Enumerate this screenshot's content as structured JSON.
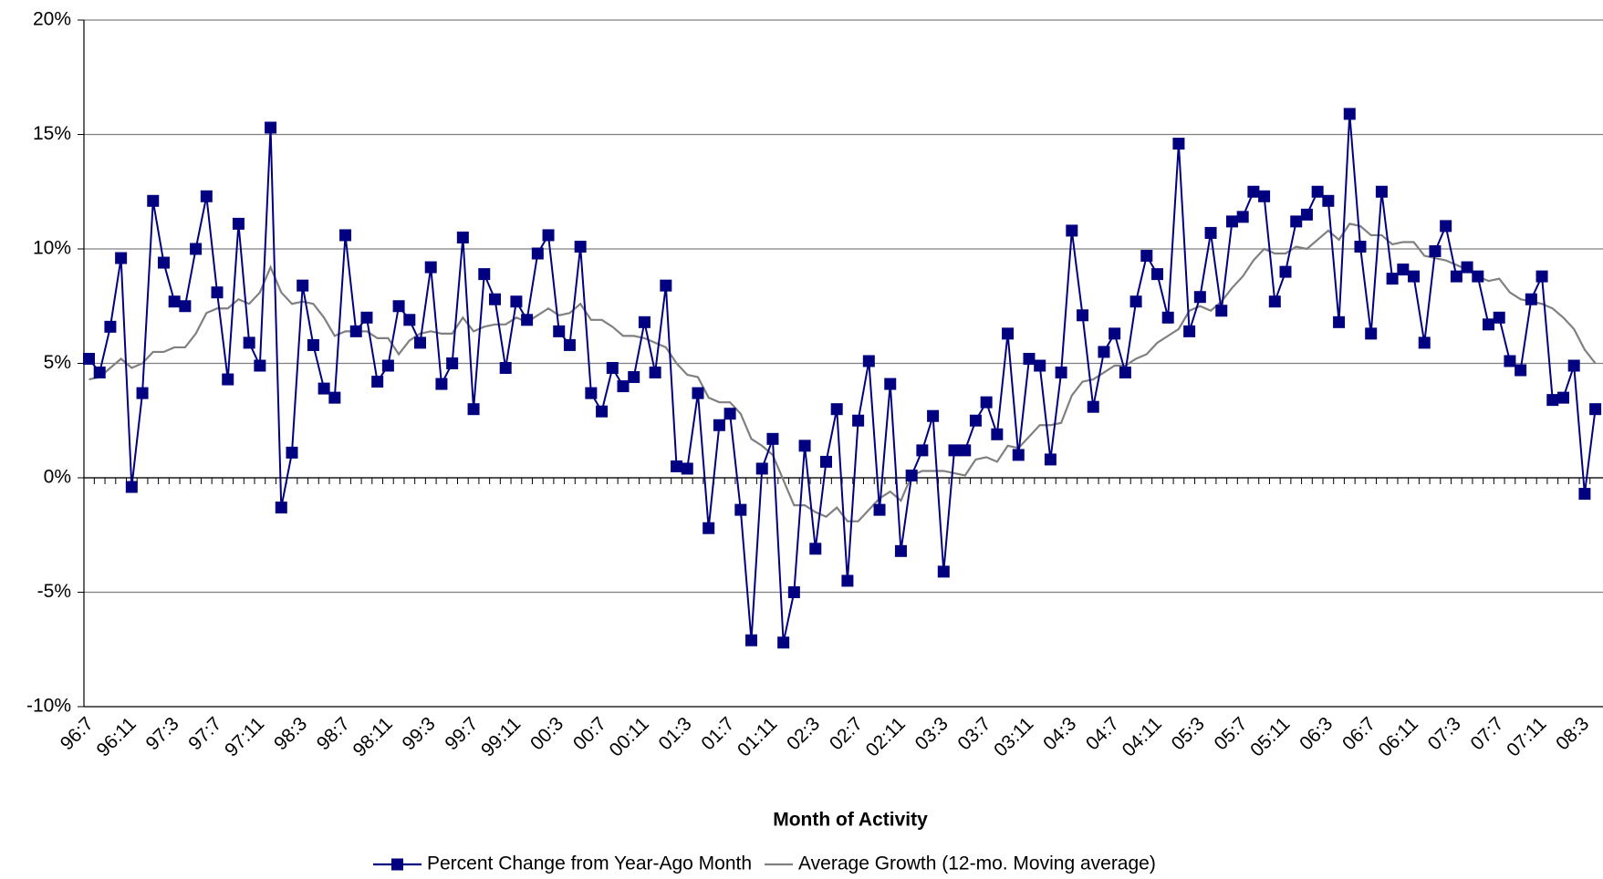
{
  "chart_data": {
    "type": "line",
    "xlabel": "Month of Activity",
    "categories": [
      "96:7",
      null,
      null,
      null,
      "96:11",
      null,
      null,
      null,
      "97:3",
      null,
      null,
      null,
      "97:7",
      null,
      null,
      null,
      "97:11",
      null,
      null,
      null,
      "98:3",
      null,
      null,
      null,
      "98:7",
      null,
      null,
      null,
      "98:11",
      null,
      null,
      null,
      "99:3",
      null,
      null,
      null,
      "99:7",
      null,
      null,
      null,
      "99:11",
      null,
      null,
      null,
      "00:3",
      null,
      null,
      null,
      "00:7",
      null,
      null,
      null,
      "00:11",
      null,
      null,
      null,
      "01:3",
      null,
      null,
      null,
      "01:7",
      null,
      null,
      null,
      "01:11",
      null,
      null,
      null,
      "02:3",
      null,
      null,
      null,
      "02:7",
      null,
      null,
      null,
      "02:11",
      null,
      null,
      null,
      "03:3",
      null,
      null,
      null,
      "03:7",
      null,
      null,
      null,
      "03:11",
      null,
      null,
      null,
      "04:3",
      null,
      null,
      null,
      "04:7",
      null,
      null,
      null,
      "04:11",
      null,
      null,
      null,
      "05:3",
      null,
      null,
      null,
      "05:7",
      null,
      null,
      null,
      "05:11",
      null,
      null,
      null,
      "06:3",
      null,
      null,
      null,
      "06:7",
      null,
      null,
      null,
      "06:11",
      null,
      null,
      null,
      "07:3",
      null,
      null,
      null,
      "07:7",
      null,
      null,
      null,
      "07:11",
      null,
      null,
      null,
      "08:3",
      null
    ],
    "series": [
      {
        "name": "Percent Change from Year-Ago Month",
        "color": "#000080",
        "marker": "square",
        "values": [
          5.2,
          4.6,
          6.6,
          9.6,
          -0.4,
          3.7,
          12.1,
          9.4,
          7.7,
          7.5,
          10,
          12.3,
          8.1,
          4.3,
          11.1,
          5.9,
          4.9,
          15.3,
          -1.3,
          1.1,
          8.4,
          5.8,
          3.9,
          3.5,
          10.6,
          6.4,
          7,
          4.2,
          4.9,
          7.5,
          6.9,
          5.9,
          9.2,
          4.1,
          5,
          10.5,
          3,
          8.9,
          7.8,
          4.8,
          7.7,
          6.9,
          9.8,
          10.6,
          6.4,
          5.8,
          10.1,
          3.7,
          2.9,
          4.8,
          4,
          4.4,
          6.8,
          4.6,
          8.4,
          0.5,
          0.4,
          3.7,
          -2.2,
          2.3,
          2.8,
          -1.4,
          -7.1,
          0.4,
          1.7,
          -7.2,
          -5,
          1.4,
          -3.1,
          0.7,
          3,
          -4.5,
          2.5,
          5.1,
          -1.4,
          4.1,
          -3.2,
          0.1,
          1.2,
          2.7,
          -4.1,
          1.2,
          1.2,
          2.5,
          3.3,
          1.9,
          6.3,
          1,
          5.2,
          4.9,
          0.8,
          4.6,
          10.8,
          7.1,
          3.1,
          5.5,
          6.3,
          4.6,
          7.7,
          9.7,
          8.9,
          7,
          14.6,
          6.4,
          7.9,
          10.7,
          7.3,
          11.2,
          11.4,
          12.5,
          12.3,
          7.7,
          9,
          11.2,
          11.5,
          12.5,
          12.1,
          6.8,
          15.9,
          10.1,
          6.3,
          12.5,
          8.7,
          9.1,
          8.8,
          5.9,
          9.9,
          11,
          8.8,
          9.2,
          8.8,
          6.7,
          7,
          5.1,
          4.7,
          7.8,
          8.8,
          3.4,
          3.5,
          4.9,
          -0.7,
          3
        ]
      },
      {
        "name": "Average Growth (12-mo. Moving average)",
        "color": "#808080",
        "values": [
          4.3,
          4.4,
          4.8,
          5.2,
          4.8,
          5,
          5.5,
          5.5,
          5.7,
          5.7,
          6.3,
          7.2,
          7.4,
          7.4,
          7.8,
          7.6,
          8.1,
          9.2,
          8.1,
          7.6,
          7.7,
          7.6,
          7,
          6.2,
          6.4,
          6.4,
          6.4,
          6.1,
          6.1,
          5.4,
          6,
          6.3,
          6.4,
          6.3,
          6.3,
          7,
          6.4,
          6.6,
          6.7,
          6.7,
          7,
          6.8,
          7.1,
          7.4,
          7.1,
          7.2,
          7.6,
          6.9,
          6.9,
          6.6,
          6.2,
          6.2,
          6.1,
          5.9,
          5.7,
          5,
          4.5,
          4.4,
          3.5,
          3.3,
          3.3,
          2.8,
          1.7,
          1.4,
          1,
          -0.1,
          -1.2,
          -1.2,
          -1.5,
          -1.7,
          -1.3,
          -1.9,
          -1.9,
          -1.4,
          -0.9,
          -0.6,
          -1,
          0.1,
          0.3,
          0.3,
          0.3,
          0.2,
          0.1,
          0.8,
          0.9,
          0.7,
          1.4,
          1.3,
          1.8,
          2.3,
          2.3,
          2.4,
          3.6,
          4.2,
          4.3,
          4.6,
          4.9,
          4.9,
          5.2,
          5.4,
          5.9,
          6.2,
          6.5,
          7.3,
          7.5,
          7.3,
          7.7,
          8.3,
          8.8,
          9.5,
          10,
          9.8,
          9.8,
          10.1,
          10,
          10.4,
          10.8,
          10.4,
          11.1,
          11,
          10.6,
          10.6,
          10.2,
          10.3,
          10.3,
          9.7,
          9.6,
          9.5,
          9.3,
          9.1,
          8.8,
          8.6,
          8.7,
          8.1,
          7.8,
          7.7,
          7.6,
          7.4,
          7,
          6.5,
          5.6,
          5
        ]
      }
    ],
    "ylim": [
      -10,
      20
    ],
    "yticks": [
      {
        "value": -10,
        "label": "-10%"
      },
      {
        "value": -5,
        "label": "-5%"
      },
      {
        "value": 0,
        "label": "0%"
      },
      {
        "value": 5,
        "label": "5%"
      },
      {
        "value": 10,
        "label": "10%"
      },
      {
        "value": 15,
        "label": "15%"
      },
      {
        "value": 20,
        "label": "20%"
      }
    ],
    "grid": true,
    "legend": "bottom"
  }
}
